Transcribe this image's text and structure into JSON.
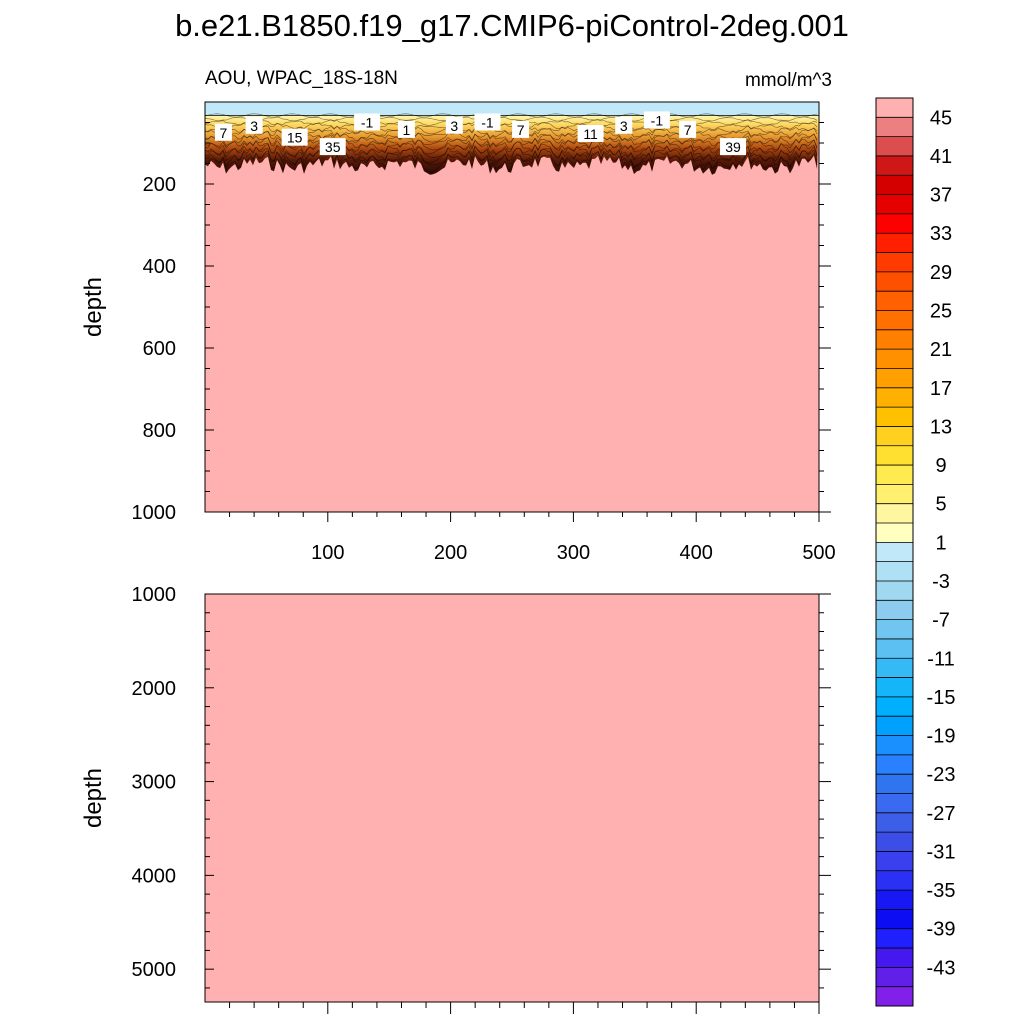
{
  "title": "b.e21.B1850.f19_g17.CMIP6-piControl-2deg.001",
  "panel_left_label": "AOU, WPAC_18S-18N",
  "panel_right_label": "mmol/m^3",
  "chart_data": [
    {
      "type": "heatmap",
      "panel": "upper",
      "variable": "AOU",
      "region": "WPAC_18S-18N",
      "units": "mmol/m^3",
      "xlabel": "",
      "ylabel": "depth",
      "xlim": [
        0,
        500
      ],
      "ylim": [
        1000,
        0
      ],
      "x_ticks": [
        100,
        200,
        300,
        400,
        500
      ],
      "y_ticks": [
        200,
        400,
        600,
        800,
        1000
      ],
      "surface_layer": {
        "depth_range": [
          0,
          40
        ],
        "value": -3
      },
      "gradient_layer": {
        "depth_range": [
          40,
          130
        ],
        "values_from": 1,
        "values_to": 45
      },
      "deep_value": 45,
      "contour_labels": [
        {
          "text": "7",
          "x": 15,
          "depth": 75
        },
        {
          "text": "3",
          "x": 40,
          "depth": 58
        },
        {
          "text": "15",
          "x": 73,
          "depth": 87
        },
        {
          "text": "35",
          "x": 104,
          "depth": 110
        },
        {
          "text": "-1",
          "x": 132,
          "depth": 50
        },
        {
          "text": "1",
          "x": 164,
          "depth": 68
        },
        {
          "text": "3",
          "x": 203,
          "depth": 58
        },
        {
          "text": "-1",
          "x": 230,
          "depth": 50
        },
        {
          "text": "7",
          "x": 257,
          "depth": 68
        },
        {
          "text": "11",
          "x": 314,
          "depth": 78
        },
        {
          "text": "3",
          "x": 341,
          "depth": 58
        },
        {
          "text": "-1",
          "x": 368,
          "depth": 45
        },
        {
          "text": "7",
          "x": 393,
          "depth": 68
        },
        {
          "text": "39",
          "x": 430,
          "depth": 110
        }
      ]
    },
    {
      "type": "heatmap",
      "panel": "lower",
      "variable": "AOU",
      "xlabel": "",
      "ylabel": "depth",
      "xlim": [
        0,
        500
      ],
      "ylim": [
        5350,
        1000
      ],
      "y_ticks": [
        1000,
        2000,
        3000,
        4000,
        5000
      ],
      "deep_value": 45
    }
  ],
  "colorbar": {
    "labels": [
      "45",
      "41",
      "37",
      "33",
      "29",
      "25",
      "21",
      "17",
      "13",
      "9",
      "5",
      "1",
      "-3",
      "-7",
      "-11",
      "-15",
      "-19",
      "-23",
      "-27",
      "-31",
      "-35",
      "-39",
      "-43"
    ],
    "colors": [
      "#ffb0b0",
      "#ec7f7f",
      "#dc4d4d",
      "#cf1717",
      "#d40000",
      "#e60000",
      "#ff0000",
      "#ff2000",
      "#ff3b00",
      "#ff5000",
      "#ff6000",
      "#ff7000",
      "#ff8000",
      "#ff9000",
      "#ffa000",
      "#ffb000",
      "#ffc000",
      "#ffd020",
      "#ffe030",
      "#ffea50",
      "#fff070",
      "#fff6a0",
      "#ffffc0",
      "#c0e8f8",
      "#b0e0f4",
      "#a0d8f0",
      "#8ccdef",
      "#70c6ef",
      "#5cc0f2",
      "#35baf5",
      "#14b6f9",
      "#00b0ff",
      "#00a0ff",
      "#1a90ff",
      "#2a80ff",
      "#2f75f0",
      "#3a6aef",
      "#3d5ee8",
      "#3b4ee8",
      "#3a40ee",
      "#2a30f4",
      "#1818f4",
      "#0d0df4",
      "#2020ff",
      "#4418ee",
      "#6020e8",
      "#8020e8"
    ]
  }
}
